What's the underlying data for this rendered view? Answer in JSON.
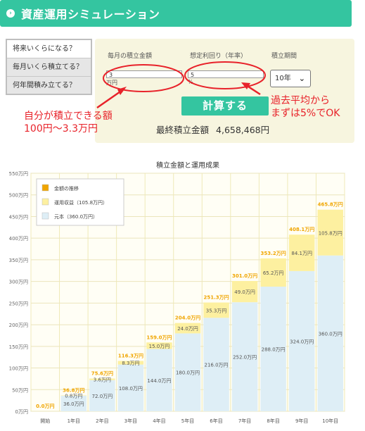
{
  "header": {
    "icon": "chevron-right-icon",
    "title": "資産運用シミュレーション"
  },
  "sidebar": {
    "items": [
      {
        "label": "将来いくらになる？"
      },
      {
        "label": "毎月いくら積立てる？"
      },
      {
        "label": "何年間積み立てる？"
      }
    ]
  },
  "form": {
    "monthly_label": "毎月の積立金額",
    "monthly_value": "3",
    "monthly_unit": "万円",
    "rate_label": "想定利回り（年率）",
    "rate_value": "5",
    "rate_unit": "%",
    "period_label": "積立期間",
    "period_value": "10年",
    "calc_button": "計算する",
    "result_label": "最終積立金額",
    "result_value": "4,658,468円"
  },
  "annotations": {
    "left": [
      "自分が積立できる額",
      "100円〜3.3万円"
    ],
    "right": [
      "過去平均から",
      "まずは5%でOK"
    ]
  },
  "colors": {
    "accent": "#34c5a0",
    "annotation": "#e8222a",
    "principal": "#deeef6",
    "profit": "#fdf0a0",
    "total_line": "#f0a500"
  },
  "chart_data": {
    "type": "bar",
    "title": "積立金額と運用成果",
    "categories": [
      "開始",
      "1年目",
      "2年目",
      "3年目",
      "4年目",
      "5年目",
      "6年目",
      "7年目",
      "8年目",
      "9年目",
      "10年目"
    ],
    "series": [
      {
        "name": "元本（360.0万円）",
        "values": [
          0,
          36.0,
          72.0,
          108.0,
          144.0,
          180.0,
          216.0,
          252.0,
          288.0,
          324.0,
          360.0
        ],
        "labels": [
          "",
          "36.0万円",
          "72.0万円",
          "108.0万円",
          "144.0万円",
          "180.0万円",
          "216.0万円",
          "252.0万円",
          "288.0万円",
          "324.0万円",
          "360.0万円"
        ]
      },
      {
        "name": "運用収益（105.8万円）",
        "values": [
          0,
          0.8,
          3.6,
          8.3,
          15.0,
          24.0,
          35.3,
          49.0,
          65.2,
          84.1,
          105.8
        ],
        "labels": [
          "",
          "0.8万円",
          "3.6万円",
          "8.3万円",
          "15.0万円",
          "24.0万円",
          "35.3万円",
          "49.0万円",
          "65.2万円",
          "84.1万円",
          "105.8万円"
        ]
      }
    ],
    "totals": [
      0,
      36.8,
      75.6,
      116.3,
      159.0,
      204.0,
      251.3,
      301.0,
      353.2,
      408.1,
      465.8
    ],
    "total_labels": [
      "0.0万円",
      "36.8万円",
      "75.6万円",
      "116.3万円",
      "159.0万円",
      "204.0万円",
      "251.3万円",
      "301.0万円",
      "353.2万円",
      "408.1万円",
      "465.8万円"
    ],
    "legend": [
      "金額の推移",
      "運用収益（105.8万円）",
      "元本（360.0万円）"
    ],
    "legend_position": "top-left",
    "yticks": [
      "0万円",
      "50万円",
      "100万円",
      "150万円",
      "200万円",
      "250万円",
      "300万円",
      "350万円",
      "400万円",
      "450万円",
      "500万円",
      "550万円"
    ],
    "ylim": [
      0,
      550
    ],
    "grid": true
  }
}
